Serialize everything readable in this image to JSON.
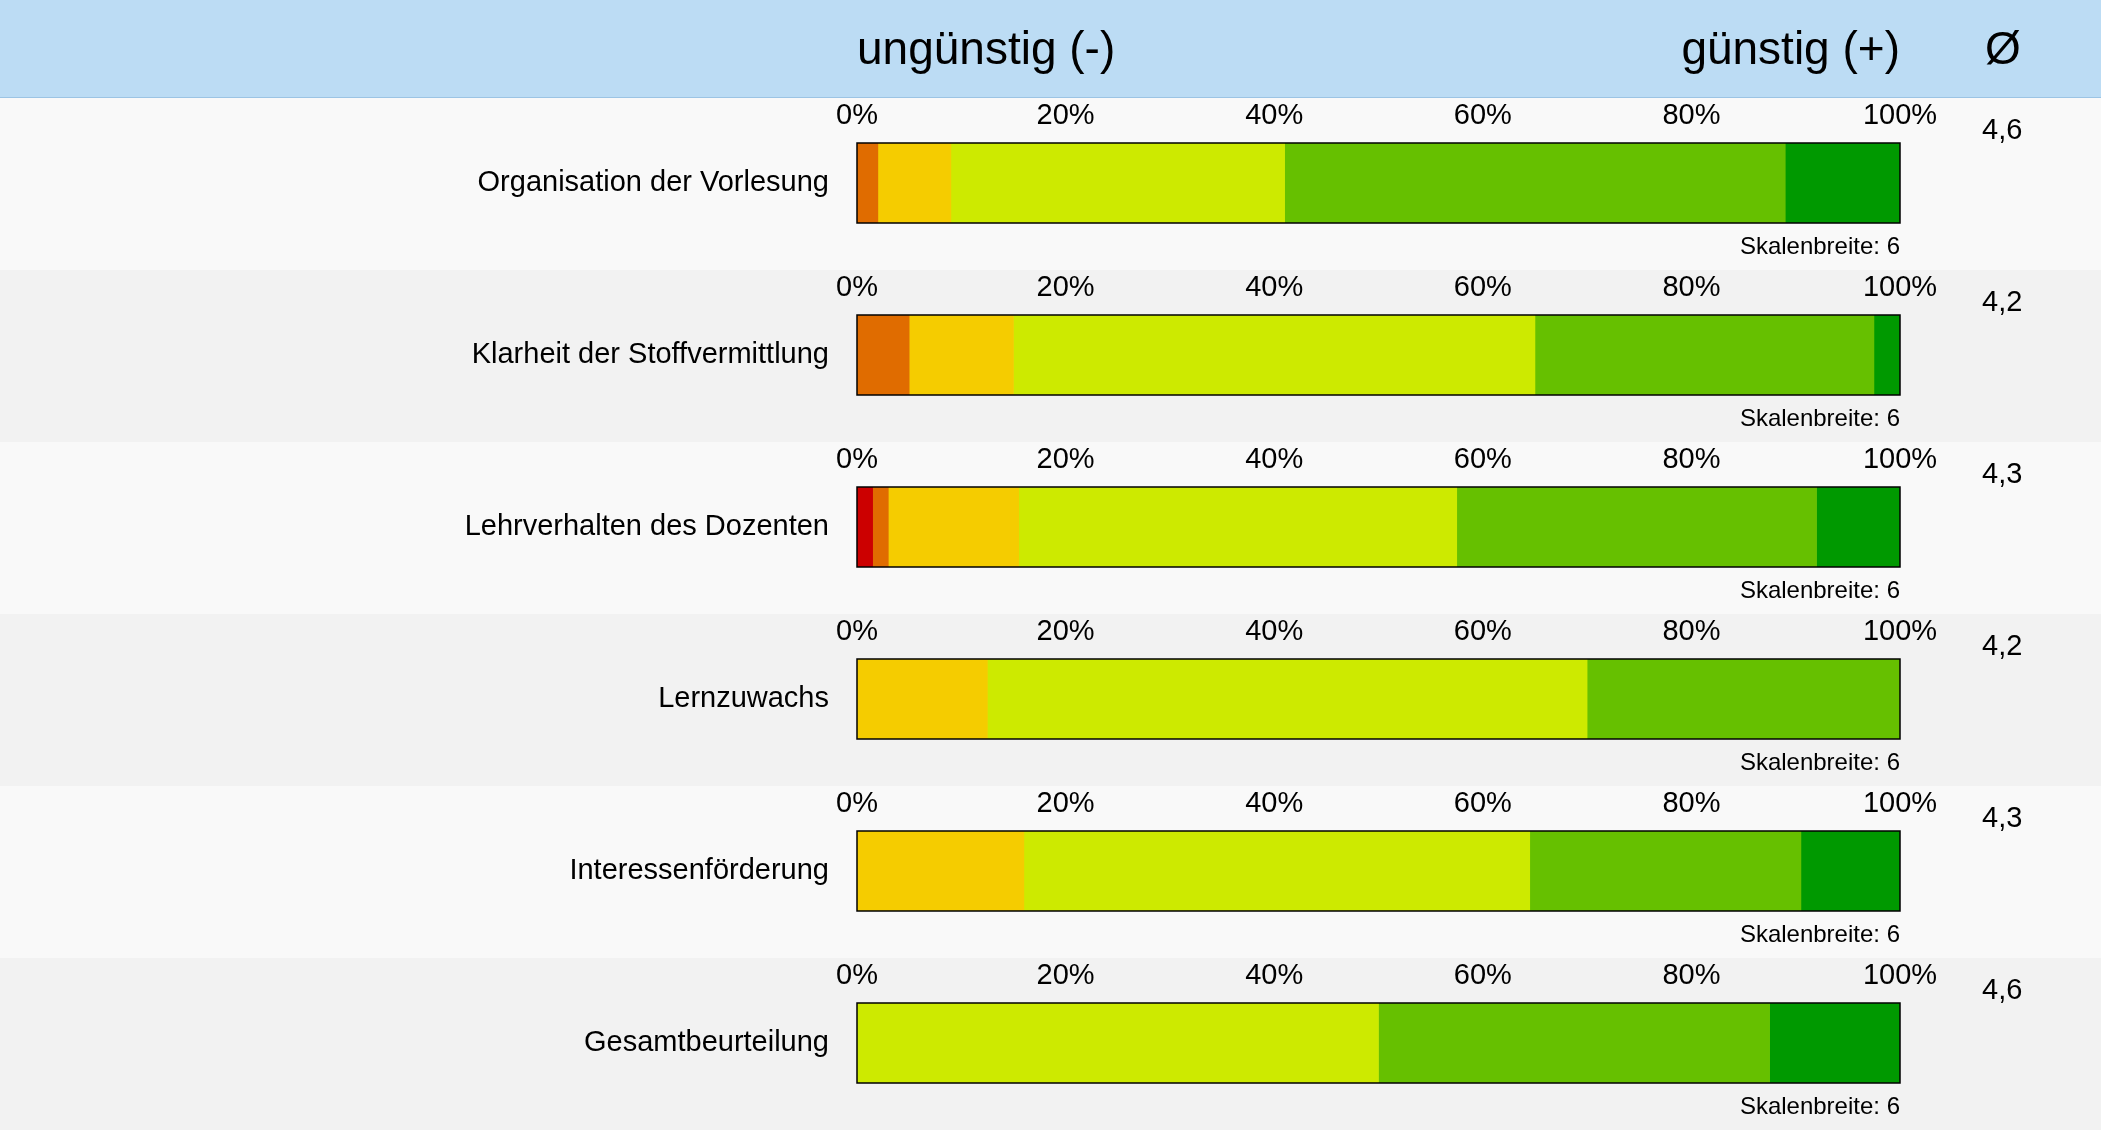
{
  "chart_data": [
    {
      "type": "other",
      "annotations": [
        "ungünstig (-)",
        "günstig (+)",
        "Ø"
      ]
    },
    {
      "type": "bar",
      "orientation": "horizontal",
      "stacked": true,
      "categories": [
        "Organisation der Vorlesung"
      ],
      "series": [
        {
          "color": "#cc0000",
          "values": [
            null
          ]
        },
        {
          "color": "#e06c00",
          "values": [
            2
          ]
        },
        {
          "color": "#f5cc00",
          "values": [
            7
          ]
        },
        {
          "color": "#cdea00",
          "values": [
            32
          ]
        },
        {
          "color": "#66c000",
          "values": [
            48
          ]
        },
        {
          "color": "#009900",
          "values": [
            11
          ]
        }
      ],
      "xlim": [
        0,
        100
      ],
      "xticks": [
        {
          "value": 0,
          "label": "0%"
        },
        {
          "value": 20,
          "label": "20%"
        },
        {
          "value": 40,
          "label": "40%"
        },
        {
          "value": 60,
          "label": "60%"
        },
        {
          "value": 80,
          "label": "80%"
        },
        {
          "value": 100,
          "label": "100%"
        }
      ],
      "annotations": [
        "Skalenbreite: 6",
        "4,6"
      ]
    },
    {
      "type": "bar",
      "orientation": "horizontal",
      "stacked": true,
      "categories": [
        "Klarheit der Stoffvermittlung"
      ],
      "series": [
        {
          "color": "#cc0000",
          "values": [
            null
          ]
        },
        {
          "color": "#e06c00",
          "values": [
            5
          ]
        },
        {
          "color": "#f5cc00",
          "values": [
            10
          ]
        },
        {
          "color": "#cdea00",
          "values": [
            50
          ]
        },
        {
          "color": "#66c000",
          "values": [
            32.5
          ]
        },
        {
          "color": "#009900",
          "values": [
            2.5
          ]
        }
      ],
      "xlim": [
        0,
        100
      ],
      "xticks": [
        {
          "value": 0,
          "label": "0%"
        },
        {
          "value": 20,
          "label": "20%"
        },
        {
          "value": 40,
          "label": "40%"
        },
        {
          "value": 60,
          "label": "60%"
        },
        {
          "value": 80,
          "label": "80%"
        },
        {
          "value": 100,
          "label": "100%"
        }
      ],
      "annotations": [
        "Skalenbreite: 6",
        "4,2"
      ]
    },
    {
      "type": "bar",
      "orientation": "horizontal",
      "stacked": true,
      "categories": [
        "Lehrverhalten des Dozenten"
      ],
      "series": [
        {
          "color": "#cc0000",
          "values": [
            1.5
          ]
        },
        {
          "color": "#e06c00",
          "values": [
            1.5
          ]
        },
        {
          "color": "#f5cc00",
          "values": [
            12.5
          ]
        },
        {
          "color": "#cdea00",
          "values": [
            42
          ]
        },
        {
          "color": "#66c000",
          "values": [
            34.5
          ]
        },
        {
          "color": "#009900",
          "values": [
            8
          ]
        }
      ],
      "xlim": [
        0,
        100
      ],
      "xticks": [
        {
          "value": 0,
          "label": "0%"
        },
        {
          "value": 20,
          "label": "20%"
        },
        {
          "value": 40,
          "label": "40%"
        },
        {
          "value": 60,
          "label": "60%"
        },
        {
          "value": 80,
          "label": "80%"
        },
        {
          "value": 100,
          "label": "100%"
        }
      ],
      "annotations": [
        "Skalenbreite: 6",
        "4,3"
      ]
    },
    {
      "type": "bar",
      "orientation": "horizontal",
      "stacked": true,
      "categories": [
        "Lernzuwachs"
      ],
      "series": [
        {
          "color": "#cc0000",
          "values": [
            null
          ]
        },
        {
          "color": "#e06c00",
          "values": [
            null
          ]
        },
        {
          "color": "#f5cc00",
          "values": [
            12.5
          ]
        },
        {
          "color": "#cdea00",
          "values": [
            57.5
          ]
        },
        {
          "color": "#66c000",
          "values": [
            30
          ]
        },
        {
          "color": "#009900",
          "values": [
            null
          ]
        }
      ],
      "xlim": [
        0,
        100
      ],
      "xticks": [
        {
          "value": 0,
          "label": "0%"
        },
        {
          "value": 20,
          "label": "20%"
        },
        {
          "value": 40,
          "label": "40%"
        },
        {
          "value": 60,
          "label": "60%"
        },
        {
          "value": 80,
          "label": "80%"
        },
        {
          "value": 100,
          "label": "100%"
        }
      ],
      "annotations": [
        "Skalenbreite: 6",
        "4,2"
      ]
    },
    {
      "type": "bar",
      "orientation": "horizontal",
      "stacked": true,
      "categories": [
        "Interessenförderung"
      ],
      "series": [
        {
          "color": "#cc0000",
          "values": [
            null
          ]
        },
        {
          "color": "#e06c00",
          "values": [
            null
          ]
        },
        {
          "color": "#f5cc00",
          "values": [
            16
          ]
        },
        {
          "color": "#cdea00",
          "values": [
            48.5
          ]
        },
        {
          "color": "#66c000",
          "values": [
            26
          ]
        },
        {
          "color": "#009900",
          "values": [
            9.5
          ]
        }
      ],
      "xlim": [
        0,
        100
      ],
      "xticks": [
        {
          "value": 0,
          "label": "0%"
        },
        {
          "value": 20,
          "label": "20%"
        },
        {
          "value": 40,
          "label": "40%"
        },
        {
          "value": 60,
          "label": "60%"
        },
        {
          "value": 80,
          "label": "80%"
        },
        {
          "value": 100,
          "label": "100%"
        }
      ],
      "annotations": [
        "Skalenbreite: 6",
        "4,3"
      ]
    },
    {
      "type": "bar",
      "orientation": "horizontal",
      "stacked": true,
      "categories": [
        "Gesamtbeurteilung"
      ],
      "series": [
        {
          "color": "#cc0000",
          "values": [
            null
          ]
        },
        {
          "color": "#e06c00",
          "values": [
            null
          ]
        },
        {
          "color": "#f5cc00",
          "values": [
            null
          ]
        },
        {
          "color": "#cdea00",
          "values": [
            50
          ]
        },
        {
          "color": "#66c000",
          "values": [
            37.5
          ]
        },
        {
          "color": "#009900",
          "values": [
            12.5
          ]
        }
      ],
      "xlim": [
        0,
        100
      ],
      "xticks": [
        {
          "value": 0,
          "label": "0%"
        },
        {
          "value": 20,
          "label": "20%"
        },
        {
          "value": 40,
          "label": "40%"
        },
        {
          "value": 60,
          "label": "60%"
        },
        {
          "value": 80,
          "label": "80%"
        },
        {
          "value": 100,
          "label": "100%"
        }
      ],
      "annotations": [
        "Skalenbreite: 6",
        "4,6"
      ]
    }
  ]
}
